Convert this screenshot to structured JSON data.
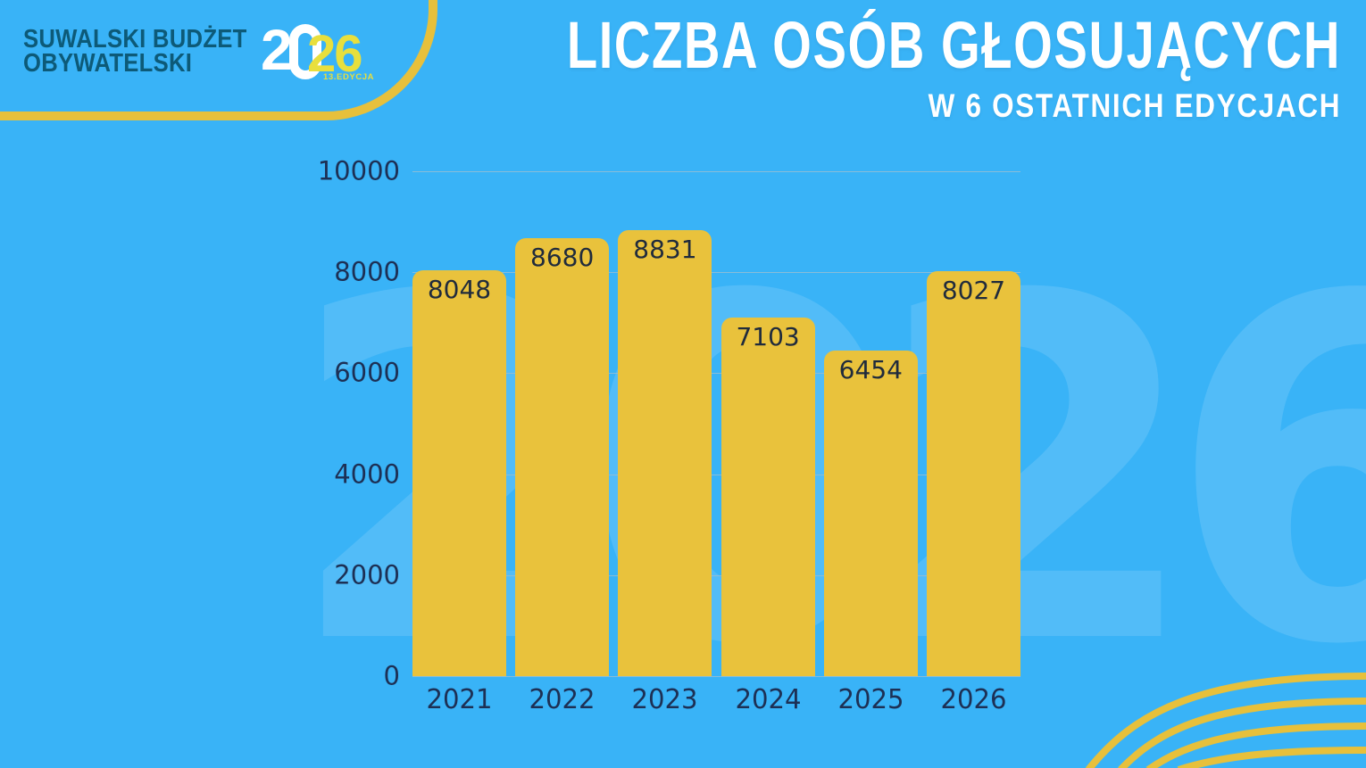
{
  "logo": {
    "line1": "SUWALSKI BUDŻET",
    "line2": "OBYWATELSKI",
    "year_prefix": "2",
    "year_suffix": "26",
    "edition": "13.EDYCJA"
  },
  "header": {
    "title": "LICZBA OSÓB GŁOSUJĄCYCH",
    "subtitle": "W 6 OSTATNICH EDYCJACH"
  },
  "watermark": "2026",
  "chart_data": {
    "type": "bar",
    "categories": [
      "2021",
      "2022",
      "2023",
      "2024",
      "2025",
      "2026"
    ],
    "values": [
      8048,
      8680,
      8831,
      7103,
      6454,
      8027
    ],
    "title": "Liczba osób głosujących w 6 ostatnich edycjach",
    "xlabel": "",
    "ylabel": "",
    "ylim": [
      0,
      10000
    ],
    "yticks": [
      0,
      2000,
      4000,
      6000,
      8000,
      10000
    ],
    "grid": true,
    "legend": false,
    "bar_color": "#e9c23c",
    "value_label_color": "#202b3c",
    "axis_label_color": "#1d3055",
    "gridline_color": "rgba(150,190,210,0.85)"
  },
  "colors": {
    "background": "#39b3f7",
    "accent_yellow": "#e7c03b",
    "logo_teal": "#0d5a78",
    "logo_yellow": "#e8df3d",
    "title_white": "#ffffff",
    "watermark_tint": "rgba(255,255,255,0.13)"
  }
}
